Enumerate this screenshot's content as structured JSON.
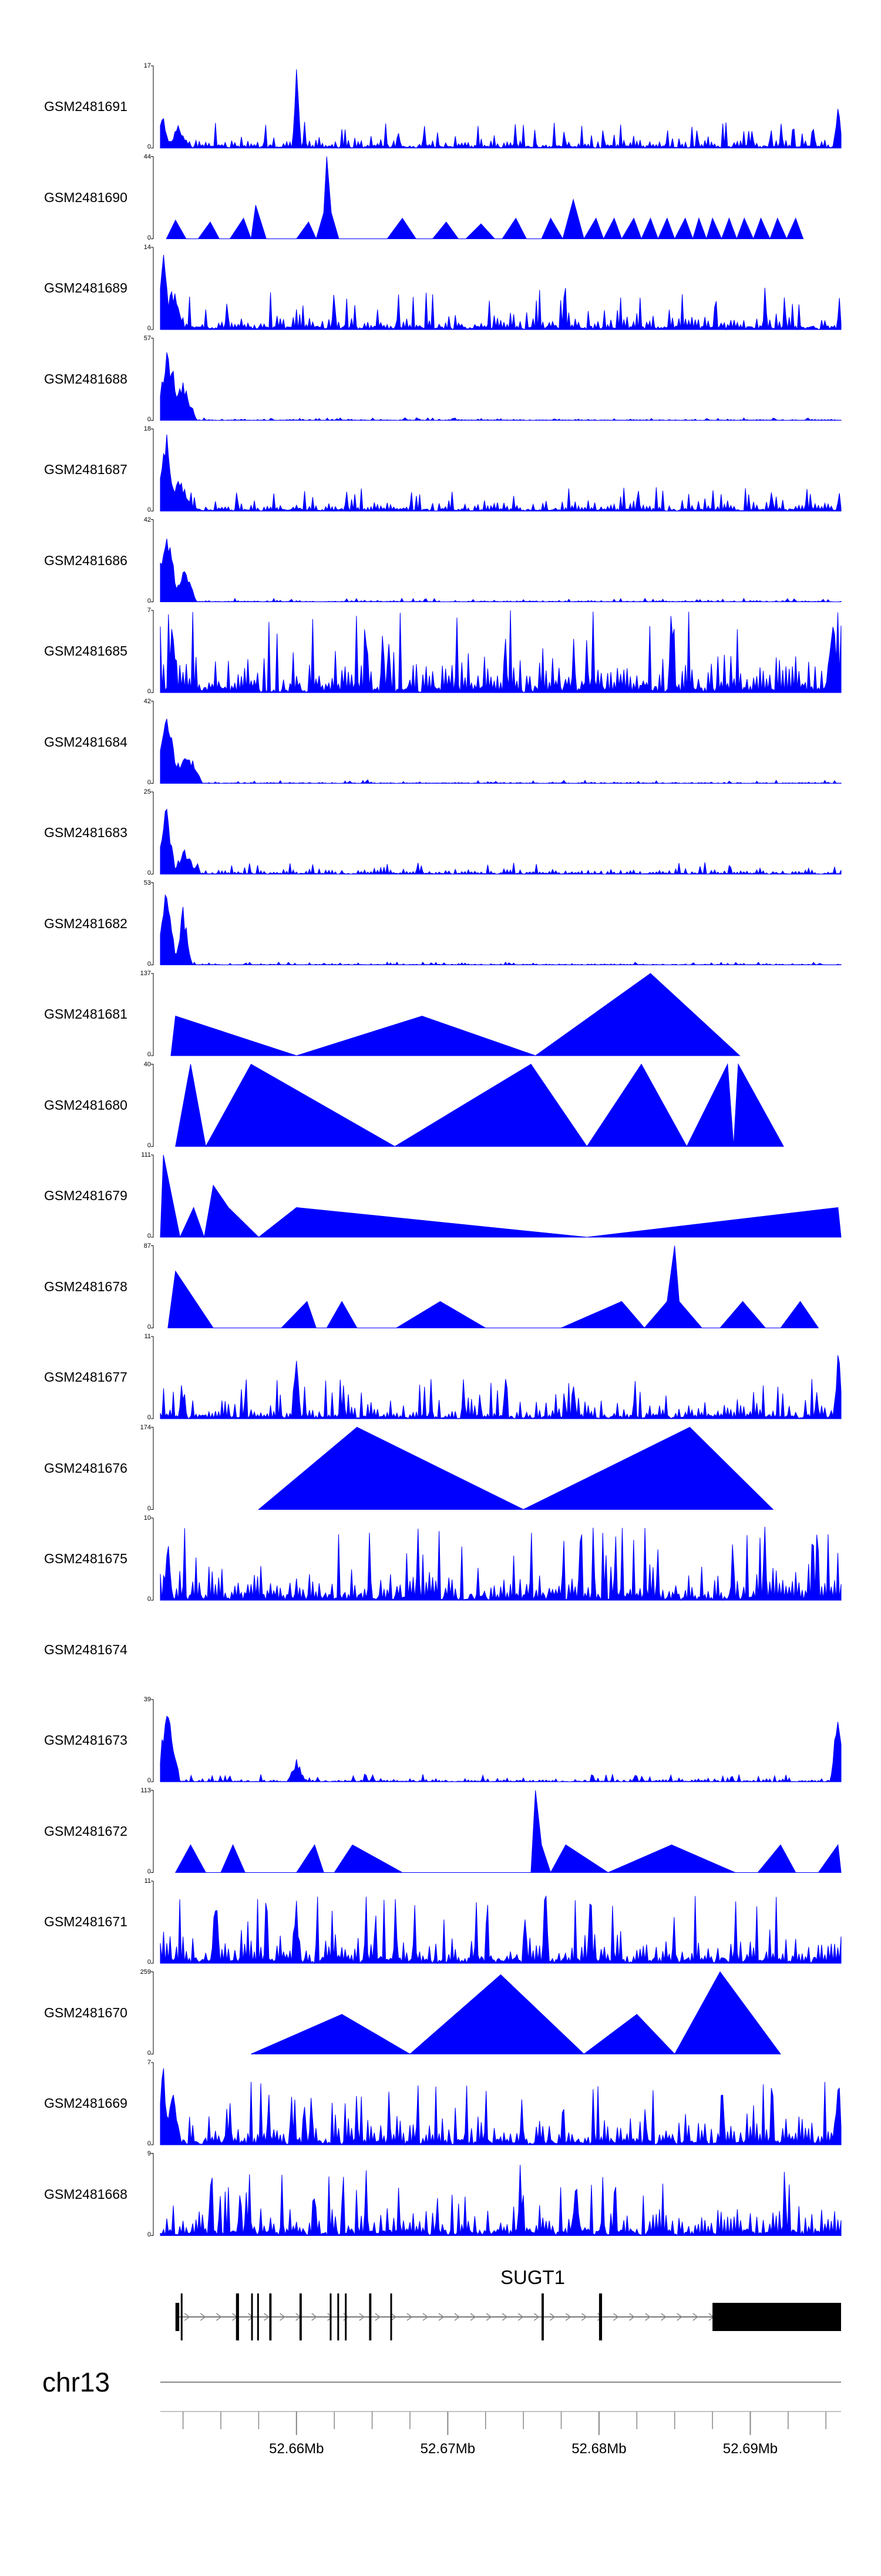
{
  "chart_data": {
    "type": "area",
    "genome": "chr13",
    "gene": {
      "name": "SUGT1",
      "exons": [
        [
          52652000,
          52652250
        ],
        [
          52652350,
          52652450
        ],
        [
          52656000,
          52656200
        ],
        [
          52657000,
          52657100
        ],
        [
          52657400,
          52657500
        ],
        [
          52658200,
          52658350
        ],
        [
          52660200,
          52660350
        ],
        [
          52662200,
          52662300
        ],
        [
          52662700,
          52662800
        ],
        [
          52663200,
          52663300
        ],
        [
          52664800,
          52664950
        ],
        [
          52666200,
          52666300
        ],
        [
          52676200,
          52676350
        ],
        [
          52680000,
          52680200
        ],
        [
          52687500,
          52696000
        ]
      ],
      "span": [
        52652000,
        52696000
      ],
      "strand": "+"
    },
    "xaxis": {
      "range": [
        52651000,
        52696000
      ],
      "tick_labels": [
        "52.66Mb",
        "52.67Mb",
        "52.68Mb",
        "52.69Mb"
      ],
      "major_ticks": [
        52660000,
        52670000,
        52680000,
        52690000
      ],
      "minor_tick_step": 2500
    },
    "series": [
      {
        "name": "GSM2481691",
        "max": 17,
        "min": 0,
        "style": "dense",
        "peaks": [
          [
            52651100,
            8,
            600
          ],
          [
            52652200,
            5,
            800
          ],
          [
            52660000,
            17,
            300
          ],
          [
            52695800,
            11,
            300
          ]
        ],
        "base": 3,
        "seed": 11
      },
      {
        "name": "GSM2481690",
        "max": 44,
        "min": 0,
        "style": "sparse",
        "points": [
          [
            52651400,
            0
          ],
          [
            52652000,
            10
          ],
          [
            52652700,
            0
          ],
          [
            52653500,
            0
          ],
          [
            52654300,
            9
          ],
          [
            52654900,
            0
          ],
          [
            52655600,
            0
          ],
          [
            52656500,
            11
          ],
          [
            52657000,
            0
          ],
          [
            52657300,
            18
          ],
          [
            52658000,
            0
          ],
          [
            52660000,
            0
          ],
          [
            52660800,
            9
          ],
          [
            52661300,
            0
          ],
          [
            52661800,
            14
          ],
          [
            52662000,
            44
          ],
          [
            52662300,
            14
          ],
          [
            52662800,
            0
          ],
          [
            52666000,
            0
          ],
          [
            52667000,
            11
          ],
          [
            52667900,
            0
          ],
          [
            52669000,
            0
          ],
          [
            52669900,
            9
          ],
          [
            52670700,
            0
          ],
          [
            52671200,
            0
          ],
          [
            52672200,
            8
          ],
          [
            52673100,
            0
          ],
          [
            52673600,
            0
          ],
          [
            52674500,
            11
          ],
          [
            52675200,
            0
          ],
          [
            52676200,
            0
          ],
          [
            52676800,
            11
          ],
          [
            52677600,
            0
          ],
          [
            52678300,
            21
          ],
          [
            52679000,
            0
          ],
          [
            52679800,
            11
          ],
          [
            52680300,
            0
          ],
          [
            52681000,
            11
          ],
          [
            52681500,
            0
          ],
          [
            52682300,
            11
          ],
          [
            52682800,
            0
          ],
          [
            52683400,
            11
          ],
          [
            52683900,
            0
          ],
          [
            52684500,
            11
          ],
          [
            52685000,
            0
          ],
          [
            52685700,
            11
          ],
          [
            52686200,
            0
          ],
          [
            52686600,
            11
          ],
          [
            52687100,
            0
          ],
          [
            52687500,
            11
          ],
          [
            52688100,
            0
          ],
          [
            52688600,
            11
          ],
          [
            52689100,
            0
          ],
          [
            52689600,
            11
          ],
          [
            52690200,
            0
          ],
          [
            52690700,
            11
          ],
          [
            52691300,
            0
          ],
          [
            52691800,
            11
          ],
          [
            52692400,
            0
          ],
          [
            52693000,
            11
          ],
          [
            52693500,
            0
          ]
        ]
      },
      {
        "name": "GSM2481689",
        "max": 14,
        "min": 0,
        "style": "dense",
        "peaks": [
          [
            52651200,
            14,
            500
          ],
          [
            52651800,
            8,
            800
          ]
        ],
        "base": 4,
        "seed": 23
      },
      {
        "name": "GSM2481688",
        "max": 57,
        "min": 0,
        "style": "dense",
        "peaks": [
          [
            52651500,
            57,
            900
          ],
          [
            52652500,
            30,
            900
          ]
        ],
        "base": 1,
        "seed": 31
      },
      {
        "name": "GSM2481687",
        "max": 18,
        "min": 0,
        "style": "dense",
        "peaks": [
          [
            52651400,
            18,
            700
          ],
          [
            52652300,
            8,
            900
          ]
        ],
        "base": 3,
        "seed": 37
      },
      {
        "name": "GSM2481686",
        "max": 42,
        "min": 0,
        "style": "dense",
        "peaks": [
          [
            52651400,
            42,
            900
          ],
          [
            52652600,
            18,
            800
          ]
        ],
        "base": 1,
        "seed": 41
      },
      {
        "name": "GSM2481685",
        "max": 7,
        "min": 0,
        "style": "dense",
        "peaks": [
          [
            52651800,
            7,
            400
          ],
          [
            52695500,
            6,
            600
          ]
        ],
        "base": 4,
        "seed": 43
      },
      {
        "name": "GSM2481684",
        "max": 42,
        "min": 0,
        "style": "dense",
        "peaks": [
          [
            52651400,
            42,
            900
          ],
          [
            52652700,
            20,
            1100
          ]
        ],
        "base": 1,
        "seed": 47
      },
      {
        "name": "GSM2481683",
        "max": 25,
        "min": 0,
        "style": "dense",
        "peaks": [
          [
            52651400,
            25,
            600
          ],
          [
            52652600,
            8,
            900
          ]
        ],
        "base": 2,
        "seed": 53
      },
      {
        "name": "GSM2481682",
        "max": 53,
        "min": 0,
        "style": "dense",
        "peaks": [
          [
            52651400,
            53,
            700
          ],
          [
            52652500,
            40,
            600
          ]
        ],
        "base": 1,
        "seed": 59
      },
      {
        "name": "GSM2481681",
        "max": 137,
        "min": 0,
        "style": "sparse",
        "points": [
          [
            52651700,
            0
          ],
          [
            52652000,
            66
          ],
          [
            52660000,
            0
          ],
          [
            52668300,
            66
          ],
          [
            52675800,
            0
          ],
          [
            52683400,
            137
          ],
          [
            52689300,
            0
          ]
        ]
      },
      {
        "name": "GSM2481680",
        "max": 40,
        "min": 0,
        "style": "sparse",
        "points": [
          [
            52652000,
            0
          ],
          [
            52653000,
            40
          ],
          [
            52654000,
            0
          ],
          [
            52657000,
            40
          ],
          [
            52666500,
            0
          ],
          [
            52675500,
            40
          ],
          [
            52679200,
            0
          ],
          [
            52682800,
            40
          ],
          [
            52685800,
            0
          ],
          [
            52688500,
            40
          ],
          [
            52688900,
            0
          ],
          [
            52689200,
            40
          ],
          [
            52692200,
            0
          ]
        ]
      },
      {
        "name": "GSM2481679",
        "max": 111,
        "min": 0,
        "style": "sparse",
        "points": [
          [
            52651000,
            0
          ],
          [
            52651200,
            111
          ],
          [
            52652300,
            0
          ],
          [
            52653200,
            40
          ],
          [
            52653900,
            0
          ],
          [
            52654500,
            70
          ],
          [
            52655500,
            40
          ],
          [
            52657500,
            0
          ],
          [
            52660000,
            40
          ],
          [
            52679200,
            0
          ],
          [
            52695800,
            40
          ],
          [
            52696000,
            0
          ]
        ]
      },
      {
        "name": "GSM2481678",
        "max": 87,
        "min": 0,
        "style": "sparse",
        "points": [
          [
            52651500,
            0
          ],
          [
            52652000,
            60
          ],
          [
            52654500,
            0
          ],
          [
            52659000,
            0
          ],
          [
            52660700,
            28
          ],
          [
            52661300,
            0
          ],
          [
            52662000,
            0
          ],
          [
            52663000,
            28
          ],
          [
            52664000,
            0
          ],
          [
            52666600,
            0
          ],
          [
            52669500,
            28
          ],
          [
            52672500,
            0
          ],
          [
            52677500,
            0
          ],
          [
            52681500,
            28
          ],
          [
            52683000,
            0
          ],
          [
            52684500,
            28
          ],
          [
            52685000,
            87
          ],
          [
            52685300,
            28
          ],
          [
            52686800,
            0
          ],
          [
            52688000,
            0
          ],
          [
            52689500,
            28
          ],
          [
            52691000,
            0
          ],
          [
            52692000,
            0
          ],
          [
            52693300,
            28
          ],
          [
            52694500,
            0
          ]
        ]
      },
      {
        "name": "GSM2481677",
        "max": 11,
        "min": 0,
        "style": "dense",
        "peaks": [
          [
            52660000,
            8,
            300
          ],
          [
            52695800,
            11,
            300
          ]
        ],
        "base": 3,
        "seed": 61
      },
      {
        "name": "GSM2481676",
        "max": 174,
        "min": 0,
        "style": "sparse",
        "points": [
          [
            52657500,
            0
          ],
          [
            52664000,
            174
          ],
          [
            52675000,
            0
          ],
          [
            52686000,
            174
          ],
          [
            52691500,
            0
          ]
        ]
      },
      {
        "name": "GSM2481675",
        "max": 10,
        "min": 0,
        "style": "dense",
        "peaks": [
          [
            52651500,
            10,
            300
          ]
        ],
        "base": 5,
        "seed": 67
      },
      {
        "name": "GSM2481674",
        "max": null,
        "min": null,
        "style": "empty"
      },
      {
        "name": "GSM2481673",
        "max": 39,
        "min": 0,
        "style": "dense",
        "peaks": [
          [
            52651500,
            39,
            800
          ],
          [
            52660000,
            12,
            600
          ],
          [
            52695800,
            39,
            500
          ]
        ],
        "base": 2,
        "seed": 71
      },
      {
        "name": "GSM2481672",
        "max": 113,
        "min": 0,
        "style": "sparse",
        "points": [
          [
            52652000,
            0
          ],
          [
            52653000,
            38
          ],
          [
            52654000,
            0
          ],
          [
            52655000,
            0
          ],
          [
            52655800,
            38
          ],
          [
            52656600,
            0
          ],
          [
            52660000,
            0
          ],
          [
            52661200,
            38
          ],
          [
            52661800,
            0
          ],
          [
            52662500,
            0
          ],
          [
            52663700,
            38
          ],
          [
            52667000,
            0
          ],
          [
            52675500,
            0
          ],
          [
            52675800,
            113
          ],
          [
            52676200,
            38
          ],
          [
            52676800,
            0
          ],
          [
            52677800,
            38
          ],
          [
            52680600,
            0
          ],
          [
            52684800,
            38
          ],
          [
            52689000,
            0
          ],
          [
            52690500,
            0
          ],
          [
            52692000,
            38
          ],
          [
            52693000,
            0
          ],
          [
            52694500,
            0
          ],
          [
            52695800,
            38
          ],
          [
            52696000,
            0
          ]
        ]
      },
      {
        "name": "GSM2481671",
        "max": 11,
        "min": 0,
        "style": "dense",
        "peaks": [
          [
            52660000,
            11,
            200
          ],
          [
            52676500,
            11,
            200
          ]
        ],
        "base": 5,
        "seed": 73
      },
      {
        "name": "GSM2481670",
        "max": 259,
        "min": 0,
        "style": "sparse",
        "points": [
          [
            52657000,
            0
          ],
          [
            52663000,
            125
          ],
          [
            52667500,
            0
          ],
          [
            52673500,
            250
          ],
          [
            52679000,
            0
          ],
          [
            52682500,
            125
          ],
          [
            52685000,
            0
          ],
          [
            52688000,
            259
          ],
          [
            52692000,
            0
          ]
        ]
      },
      {
        "name": "GSM2481669",
        "max": 7,
        "min": 0,
        "style": "dense",
        "peaks": [
          [
            52651200,
            7,
            500
          ],
          [
            52651800,
            5,
            600
          ],
          [
            52695800,
            5,
            400
          ]
        ],
        "base": 3,
        "seed": 79
      },
      {
        "name": "GSM2481668",
        "max": 9,
        "min": 0,
        "style": "dense",
        "peaks": [
          [
            52674800,
            9,
            200
          ],
          [
            52678500,
            7,
            300
          ]
        ],
        "base": 4,
        "seed": 83
      }
    ]
  }
}
